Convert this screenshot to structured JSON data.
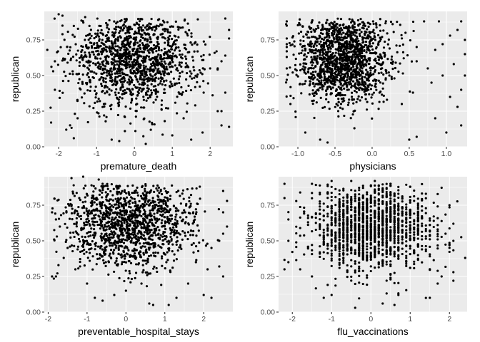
{
  "chart_data": [
    {
      "type": "scatter",
      "xlabel": "premature_death",
      "ylabel": "republican",
      "xlim": [
        -2.38,
        2.6
      ],
      "ylim": [
        0.0,
        0.95
      ],
      "x_ticks": [
        -2,
        -1,
        0,
        1,
        2
      ],
      "x_tick_labels": [
        "-2",
        "-1",
        "0",
        "1",
        "2"
      ],
      "y_ticks": [
        0.0,
        0.25,
        0.5,
        0.75
      ],
      "y_tick_labels": [
        "0.00",
        "0.25",
        "0.50",
        "0.75"
      ],
      "grid": true,
      "point_cloud": {
        "n": 1400,
        "x_mean": 0.0,
        "x_sd": 0.85,
        "y_mean": 0.62,
        "y_sd": 0.17
      },
      "points": [
        [
          -2.0,
          0.93
        ],
        [
          -1.9,
          0.92
        ],
        [
          -1.3,
          0.91
        ],
        [
          -0.3,
          0.85
        ],
        [
          2.4,
          0.9
        ],
        [
          -2.2,
          0.17
        ],
        [
          -1.6,
          0.06
        ],
        [
          -0.6,
          0.05
        ],
        [
          -0.4,
          0.04
        ],
        [
          0.3,
          0.02
        ],
        [
          1.0,
          0.08
        ],
        [
          1.5,
          0.05
        ],
        [
          2.3,
          0.15
        ],
        [
          2.5,
          0.14
        ],
        [
          2.4,
          0.38
        ],
        [
          2.2,
          0.25
        ],
        [
          2.3,
          0.25
        ],
        [
          -2.3,
          0.68
        ],
        [
          -2.1,
          0.6
        ],
        [
          -2.1,
          0.4
        ],
        [
          -1.9,
          0.85
        ],
        [
          -1.9,
          0.79
        ],
        [
          2.5,
          0.82
        ],
        [
          2.5,
          0.76
        ],
        [
          2.4,
          0.64
        ],
        [
          -1.8,
          0.12
        ],
        [
          -1.5,
          0.2
        ],
        [
          -0.8,
          0.22
        ],
        [
          0.8,
          0.18
        ],
        [
          1.3,
          0.2
        ],
        [
          1.8,
          0.1
        ],
        [
          2.0,
          0.55
        ],
        [
          2.2,
          0.55
        ],
        [
          2.3,
          0.6
        ]
      ]
    },
    {
      "type": "scatter",
      "xlabel": "physicians",
      "ylabel": "republican",
      "xlim": [
        -1.26,
        1.28
      ],
      "ylim": [
        0.0,
        0.95
      ],
      "x_ticks": [
        -1.0,
        -0.5,
        0.0,
        0.5,
        1.0
      ],
      "x_tick_labels": [
        "-1.0",
        "-0.5",
        "0.0",
        "0.5",
        "1.0"
      ],
      "y_ticks": [
        0.0,
        0.25,
        0.5,
        0.75
      ],
      "y_tick_labels": [
        "0.00",
        "0.25",
        "0.50",
        "0.75"
      ],
      "grid": true,
      "point_cloud": {
        "n": 1500,
        "x_mean": -0.38,
        "x_sd": 0.3,
        "y_mean": 0.62,
        "y_sd": 0.16
      },
      "points": [
        [
          -1.15,
          0.88
        ],
        [
          -1.15,
          0.85
        ],
        [
          -1.15,
          0.76
        ],
        [
          -1.15,
          0.72
        ],
        [
          -1.15,
          0.7
        ],
        [
          -1.15,
          0.67
        ],
        [
          -1.15,
          0.63
        ],
        [
          -1.15,
          0.55
        ],
        [
          -1.15,
          0.47
        ],
        [
          -1.1,
          0.3
        ],
        [
          -0.9,
          0.1
        ],
        [
          -0.7,
          0.05
        ],
        [
          -0.6,
          0.03
        ],
        [
          0.5,
          0.05
        ],
        [
          0.6,
          0.07
        ],
        [
          0.85,
          0.2
        ],
        [
          1.0,
          0.1
        ],
        [
          1.2,
          0.15
        ],
        [
          1.05,
          0.35
        ],
        [
          1.2,
          0.4
        ],
        [
          1.15,
          0.28
        ],
        [
          0.8,
          0.45
        ],
        [
          1.25,
          0.5
        ],
        [
          1.25,
          0.65
        ],
        [
          1.25,
          0.75
        ],
        [
          1.2,
          0.88
        ],
        [
          0.9,
          0.88
        ],
        [
          0.7,
          0.88
        ],
        [
          0.55,
          0.38
        ],
        [
          0.4,
          0.3
        ],
        [
          0.3,
          0.48
        ],
        [
          0.2,
          0.33
        ],
        [
          0.1,
          0.38
        ],
        [
          -0.05,
          0.42
        ],
        [
          0.75,
          0.55
        ],
        [
          0.6,
          0.6
        ],
        [
          0.95,
          0.5
        ],
        [
          1.1,
          0.58
        ],
        [
          1.05,
          0.78
        ],
        [
          1.15,
          0.82
        ],
        [
          0.95,
          0.72
        ],
        [
          0.85,
          0.68
        ],
        [
          0.6,
          0.7
        ],
        [
          0.45,
          0.8
        ]
      ]
    },
    {
      "type": "scatter",
      "xlabel": "preventable_hospital_stays",
      "ylabel": "republican",
      "xlim": [
        -2.1,
        2.75
      ],
      "ylim": [
        0.0,
        0.95
      ],
      "x_ticks": [
        -2,
        -1,
        0,
        1,
        2
      ],
      "x_tick_labels": [
        "-2",
        "-1",
        "0",
        "1",
        "2"
      ],
      "y_ticks": [
        0.0,
        0.25,
        0.5,
        0.75
      ],
      "y_tick_labels": [
        "0.00",
        "0.25",
        "0.50",
        "0.75"
      ],
      "grid": true,
      "point_cloud": {
        "n": 1400,
        "x_mean": 0.1,
        "x_sd": 0.85,
        "y_mean": 0.62,
        "y_sd": 0.16
      },
      "points": [
        [
          -1.4,
          0.94
        ],
        [
          -0.7,
          0.93
        ],
        [
          -0.6,
          0.9
        ],
        [
          -1.1,
          0.95
        ],
        [
          -1.9,
          0.7
        ],
        [
          -1.8,
          0.65
        ],
        [
          -1.7,
          0.6
        ],
        [
          -1.9,
          0.25
        ],
        [
          -1.8,
          0.25
        ],
        [
          -1.6,
          0.38
        ],
        [
          -1.3,
          0.3
        ],
        [
          -0.8,
          0.1
        ],
        [
          -0.6,
          0.08
        ],
        [
          0.6,
          0.06
        ],
        [
          0.7,
          0.05
        ],
        [
          1.1,
          0.05
        ],
        [
          1.3,
          0.1
        ],
        [
          2.0,
          0.12
        ],
        [
          2.2,
          0.1
        ],
        [
          2.4,
          0.32
        ],
        [
          2.5,
          0.25
        ],
        [
          2.1,
          0.3
        ],
        [
          1.6,
          0.2
        ],
        [
          2.5,
          0.7
        ],
        [
          2.6,
          0.6
        ],
        [
          2.5,
          0.55
        ],
        [
          2.4,
          0.5
        ],
        [
          2.6,
          0.78
        ],
        [
          2.5,
          0.85
        ],
        [
          1.9,
          0.88
        ],
        [
          -1.2,
          0.8
        ],
        [
          -1.0,
          0.2
        ],
        [
          0.0,
          0.15
        ],
        [
          0.4,
          0.2
        ],
        [
          -0.3,
          0.12
        ],
        [
          1.8,
          0.35
        ],
        [
          2.2,
          0.45
        ],
        [
          -1.5,
          0.45
        ]
      ]
    },
    {
      "type": "scatter",
      "xlabel": "flu_vaccinations",
      "ylabel": "republican",
      "xlim": [
        -2.35,
        2.45
      ],
      "ylim": [
        0.0,
        0.95
      ],
      "x_ticks": [
        -2,
        -1,
        0,
        1,
        2
      ],
      "x_tick_labels": [
        "-2",
        "-1",
        "0",
        "1",
        "2"
      ],
      "y_ticks": [
        0.0,
        0.25,
        0.5,
        0.75
      ],
      "y_tick_labels": [
        "0.00",
        "0.25",
        "0.50",
        "0.75"
      ],
      "grid": true,
      "point_cloud": {
        "n": 1500,
        "x_mean": 0.0,
        "x_sd": 0.8,
        "y_mean": 0.6,
        "y_sd": 0.16,
        "x_discrete_step": 0.1
      },
      "points": [
        [
          -2.2,
          0.3
        ],
        [
          -2.1,
          0.35
        ],
        [
          -2.1,
          0.5
        ],
        [
          -2.1,
          0.65
        ],
        [
          -2.2,
          0.8
        ],
        [
          -1.8,
          0.3
        ],
        [
          -1.5,
          0.25
        ],
        [
          -1.2,
          0.1
        ],
        [
          -1.0,
          0.12
        ],
        [
          -0.4,
          0.03
        ],
        [
          0.3,
          0.06
        ],
        [
          0.6,
          0.05
        ],
        [
          0.7,
          0.12
        ],
        [
          1.5,
          0.1
        ],
        [
          2.1,
          0.5
        ],
        [
          2.1,
          0.62
        ],
        [
          2.0,
          0.75
        ],
        [
          2.1,
          0.28
        ],
        [
          2.1,
          0.22
        ],
        [
          2.4,
          0.38
        ],
        [
          1.7,
          0.2
        ],
        [
          1.8,
          0.25
        ],
        [
          -0.5,
          0.92
        ],
        [
          0.1,
          0.92
        ],
        [
          0.5,
          0.9
        ],
        [
          1.0,
          0.88
        ],
        [
          -1.5,
          0.9
        ],
        [
          -1.0,
          0.92
        ],
        [
          -2.2,
          0.9
        ]
      ]
    }
  ]
}
